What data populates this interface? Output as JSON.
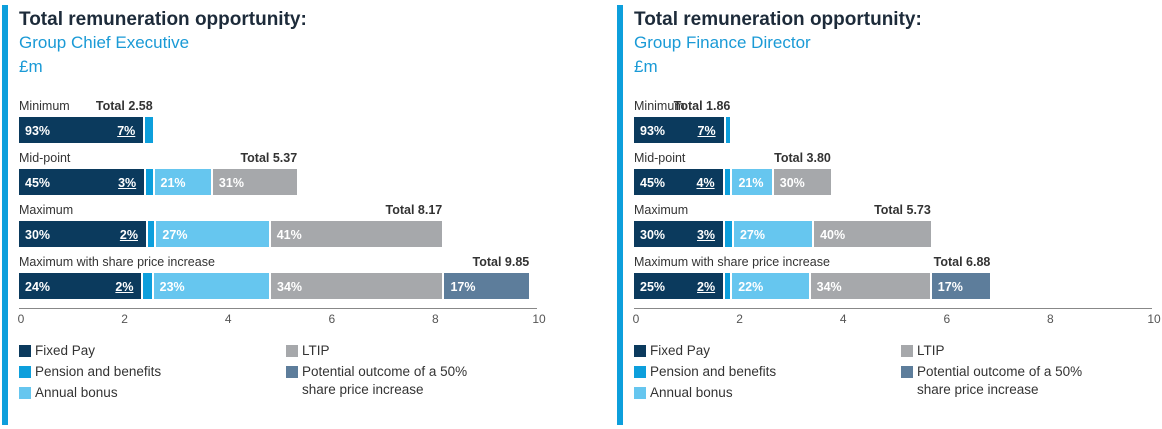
{
  "colors": {
    "fixed": "#0b3a5d",
    "pension": "#0d9fdc",
    "bonus": "#66c6ef",
    "ltip": "#a6a8ab",
    "share": "#5d7d9b",
    "accent": "#0d9fdc"
  },
  "legend": {
    "fixed": "Fixed Pay",
    "pension": "Pension and benefits",
    "bonus": "Annual bonus",
    "ltip": "LTIP",
    "share": "Potential outcome of a 50% share price increase"
  },
  "chart_data": [
    {
      "type": "bar",
      "orientation": "horizontal",
      "stacked": true,
      "title": "Total remuneration opportunity:",
      "subtitle": "Group Chief Executive",
      "unit": "£m",
      "xlim": [
        0,
        10
      ],
      "ticks": [
        "0",
        "2",
        "4",
        "6",
        "8",
        "10"
      ],
      "rows": [
        {
          "label": "Minimum",
          "total": 2.58,
          "total_label": "Total 2.58",
          "segments": [
            {
              "key": "fixed",
              "pct": 93,
              "label": "93%"
            },
            {
              "key": "pension",
              "pct": 7,
              "label": "7%"
            }
          ]
        },
        {
          "label": "Mid-point",
          "total": 5.37,
          "total_label": "Total 5.37",
          "segments": [
            {
              "key": "fixed",
              "pct": 45,
              "label": "45%"
            },
            {
              "key": "pension",
              "pct": 3,
              "label": "3%"
            },
            {
              "key": "bonus",
              "pct": 21,
              "label": "21%"
            },
            {
              "key": "ltip",
              "pct": 31,
              "label": "31%"
            }
          ]
        },
        {
          "label": "Maximum",
          "total": 8.17,
          "total_label": "Total 8.17",
          "segments": [
            {
              "key": "fixed",
              "pct": 30,
              "label": "30%"
            },
            {
              "key": "pension",
              "pct": 2,
              "label": "2%"
            },
            {
              "key": "bonus",
              "pct": 27,
              "label": "27%"
            },
            {
              "key": "ltip",
              "pct": 41,
              "label": "41%"
            }
          ]
        },
        {
          "label": "Maximum with share price increase",
          "total": 9.85,
          "total_label": "Total 9.85",
          "segments": [
            {
              "key": "fixed",
              "pct": 24,
              "label": "24%"
            },
            {
              "key": "pension",
              "pct": 2,
              "label": "2%"
            },
            {
              "key": "bonus",
              "pct": 23,
              "label": "23%"
            },
            {
              "key": "ltip",
              "pct": 34,
              "label": "34%"
            },
            {
              "key": "share",
              "pct": 17,
              "label": "17%"
            }
          ]
        }
      ]
    },
    {
      "type": "bar",
      "orientation": "horizontal",
      "stacked": true,
      "title": "Total remuneration opportunity:",
      "subtitle": "Group Finance Director",
      "unit": "£m",
      "xlim": [
        0,
        10
      ],
      "ticks": [
        "0",
        "2",
        "4",
        "6",
        "8",
        "10"
      ],
      "rows": [
        {
          "label": "Minimum",
          "total": 1.86,
          "total_label": "Total 1.86",
          "segments": [
            {
              "key": "fixed",
              "pct": 93,
              "label": "93%"
            },
            {
              "key": "pension",
              "pct": 7,
              "label": "7%"
            }
          ]
        },
        {
          "label": "Mid-point",
          "total": 3.8,
          "total_label": "Total 3.80",
          "segments": [
            {
              "key": "fixed",
              "pct": 45,
              "label": "45%"
            },
            {
              "key": "pension",
              "pct": 4,
              "label": "4%"
            },
            {
              "key": "bonus",
              "pct": 21,
              "label": "21%"
            },
            {
              "key": "ltip",
              "pct": 30,
              "label": "30%"
            }
          ]
        },
        {
          "label": "Maximum",
          "total": 5.73,
          "total_label": "Total 5.73",
          "segments": [
            {
              "key": "fixed",
              "pct": 30,
              "label": "30%"
            },
            {
              "key": "pension",
              "pct": 3,
              "label": "3%"
            },
            {
              "key": "bonus",
              "pct": 27,
              "label": "27%"
            },
            {
              "key": "ltip",
              "pct": 40,
              "label": "40%"
            }
          ]
        },
        {
          "label": "Maximum with share price increase",
          "total": 6.88,
          "total_label": "Total 6.88",
          "segments": [
            {
              "key": "fixed",
              "pct": 25,
              "label": "25%"
            },
            {
              "key": "pension",
              "pct": 2,
              "label": "2%"
            },
            {
              "key": "bonus",
              "pct": 22,
              "label": "22%"
            },
            {
              "key": "ltip",
              "pct": 34,
              "label": "34%"
            },
            {
              "key": "share",
              "pct": 17,
              "label": "17%"
            }
          ]
        }
      ]
    }
  ]
}
